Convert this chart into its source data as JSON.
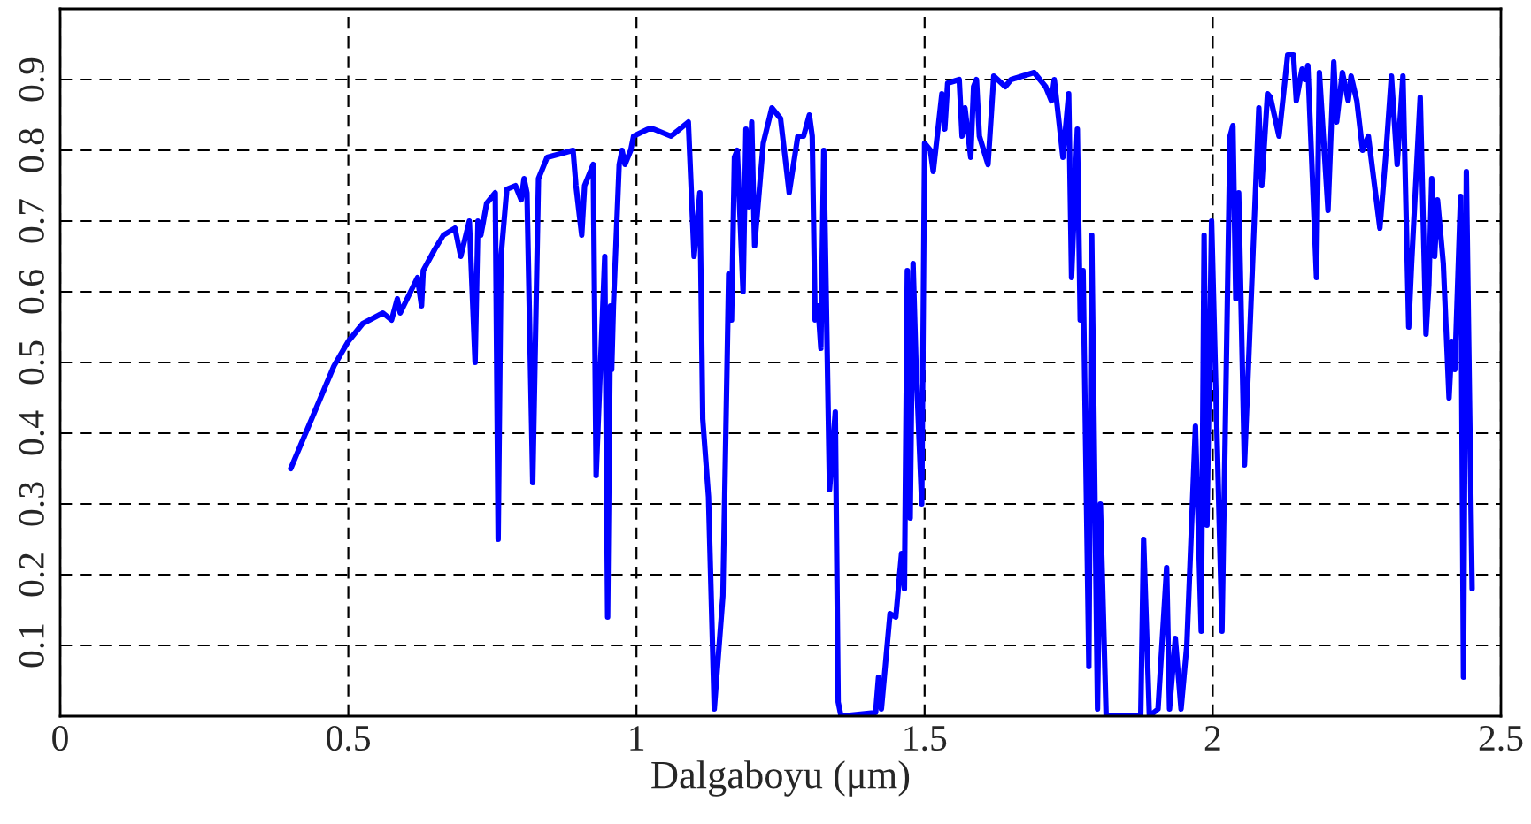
{
  "chart_data": {
    "type": "line",
    "xlabel": "Dalgaboyu (μm)",
    "xlim": [
      0,
      2.5
    ],
    "xticks": [
      0,
      0.5,
      1,
      1.5,
      2,
      2.5
    ],
    "ylim": [
      0,
      1
    ],
    "yticks": [
      {
        "value": 0,
        "label": null
      },
      0.1,
      0.2,
      0.3,
      0.4,
      0.5,
      0.6,
      0.7,
      0.8,
      0.9,
      {
        "value": 1,
        "label": null
      }
    ],
    "grid": true,
    "marker": "none",
    "line_style": "solid",
    "series": [
      {
        "color": "#0000ff",
        "x": [
          0.4,
          0.475,
          0.5,
          0.525,
          0.56,
          0.575,
          0.585,
          0.59,
          0.62,
          0.627,
          0.63,
          0.65,
          0.665,
          0.685,
          0.695,
          0.71,
          0.72,
          0.725,
          0.73,
          0.74,
          0.755,
          0.76,
          0.765,
          0.775,
          0.79,
          0.8,
          0.805,
          0.81,
          0.82,
          0.83,
          0.845,
          0.89,
          0.895,
          0.905,
          0.91,
          0.925,
          0.93,
          0.945,
          0.95,
          0.955,
          0.957,
          0.96,
          0.97,
          0.975,
          0.98,
          0.99,
          0.995,
          1.02,
          1.03,
          1.06,
          1.09,
          1.1,
          1.11,
          1.115,
          1.125,
          1.135,
          1.15,
          1.16,
          1.165,
          1.17,
          1.175,
          1.185,
          1.19,
          1.195,
          1.2,
          1.205,
          1.22,
          1.235,
          1.25,
          1.265,
          1.28,
          1.29,
          1.3,
          1.305,
          1.31,
          1.315,
          1.32,
          1.325,
          1.335,
          1.345,
          1.35,
          1.355,
          1.415,
          1.42,
          1.425,
          1.44,
          1.45,
          1.46,
          1.465,
          1.47,
          1.475,
          1.48,
          1.485,
          1.495,
          1.5,
          1.51,
          1.515,
          1.53,
          1.535,
          1.54,
          1.56,
          1.565,
          1.57,
          1.58,
          1.585,
          1.59,
          1.595,
          1.61,
          1.62,
          1.64,
          1.65,
          1.69,
          1.71,
          1.72,
          1.725,
          1.74,
          1.75,
          1.755,
          1.765,
          1.77,
          1.775,
          1.785,
          1.79,
          1.8,
          1.805,
          1.815,
          1.875,
          1.88,
          1.89,
          1.905,
          1.92,
          1.925,
          1.935,
          1.945,
          1.955,
          1.97,
          1.98,
          1.985,
          1.99,
          1.998,
          2.016,
          2.03,
          2.035,
          2.04,
          2.045,
          2.055,
          2.08,
          2.085,
          2.095,
          2.1,
          2.115,
          2.13,
          2.14,
          2.145,
          2.155,
          2.16,
          2.165,
          2.18,
          2.185,
          2.2,
          2.21,
          2.215,
          2.225,
          2.235,
          2.24,
          2.25,
          2.26,
          2.27,
          2.29,
          2.3,
          2.31,
          2.32,
          2.33,
          2.34,
          2.345,
          2.36,
          2.37,
          2.375,
          2.38,
          2.385,
          2.39,
          2.4,
          2.41,
          2.415,
          2.42,
          2.43,
          2.435,
          2.44,
          2.45
        ],
        "values": [
          0.35,
          0.495,
          0.53,
          0.555,
          0.57,
          0.56,
          0.59,
          0.57,
          0.62,
          0.58,
          0.63,
          0.66,
          0.68,
          0.69,
          0.65,
          0.7,
          0.5,
          0.7,
          0.68,
          0.725,
          0.74,
          0.25,
          0.65,
          0.745,
          0.75,
          0.73,
          0.76,
          0.74,
          0.33,
          0.76,
          0.79,
          0.8,
          0.75,
          0.68,
          0.75,
          0.78,
          0.34,
          0.65,
          0.14,
          0.58,
          0.49,
          0.58,
          0.78,
          0.8,
          0.78,
          0.8,
          0.82,
          0.83,
          0.83,
          0.82,
          0.84,
          0.65,
          0.74,
          0.42,
          0.31,
          0.01,
          0.17,
          0.625,
          0.56,
          0.79,
          0.8,
          0.6,
          0.83,
          0.72,
          0.84,
          0.665,
          0.81,
          0.86,
          0.845,
          0.74,
          0.82,
          0.82,
          0.85,
          0.82,
          0.56,
          0.58,
          0.52,
          0.8,
          0.32,
          0.43,
          0.02,
          0.0,
          0.005,
          0.055,
          0.01,
          0.145,
          0.14,
          0.23,
          0.18,
          0.63,
          0.28,
          0.64,
          0.5,
          0.3,
          0.81,
          0.8,
          0.77,
          0.88,
          0.83,
          0.895,
          0.9,
          0.82,
          0.86,
          0.79,
          0.89,
          0.9,
          0.82,
          0.78,
          0.905,
          0.89,
          0.9,
          0.91,
          0.89,
          0.87,
          0.9,
          0.79,
          0.88,
          0.62,
          0.83,
          0.56,
          0.63,
          0.07,
          0.68,
          0.01,
          0.3,
          0.0,
          0.0,
          0.25,
          0.0,
          0.01,
          0.21,
          0.01,
          0.11,
          0.01,
          0.1,
          0.41,
          0.12,
          0.68,
          0.27,
          0.7,
          0.12,
          0.82,
          0.835,
          0.59,
          0.74,
          0.355,
          0.86,
          0.75,
          0.88,
          0.875,
          0.82,
          0.935,
          0.935,
          0.87,
          0.915,
          0.9,
          0.92,
          0.62,
          0.91,
          0.715,
          0.925,
          0.84,
          0.91,
          0.87,
          0.905,
          0.87,
          0.8,
          0.82,
          0.69,
          0.79,
          0.905,
          0.78,
          0.905,
          0.55,
          0.64,
          0.875,
          0.54,
          0.61,
          0.76,
          0.65,
          0.73,
          0.64,
          0.45,
          0.53,
          0.49,
          0.735,
          0.055,
          0.77,
          0.18
        ]
      }
    ]
  }
}
